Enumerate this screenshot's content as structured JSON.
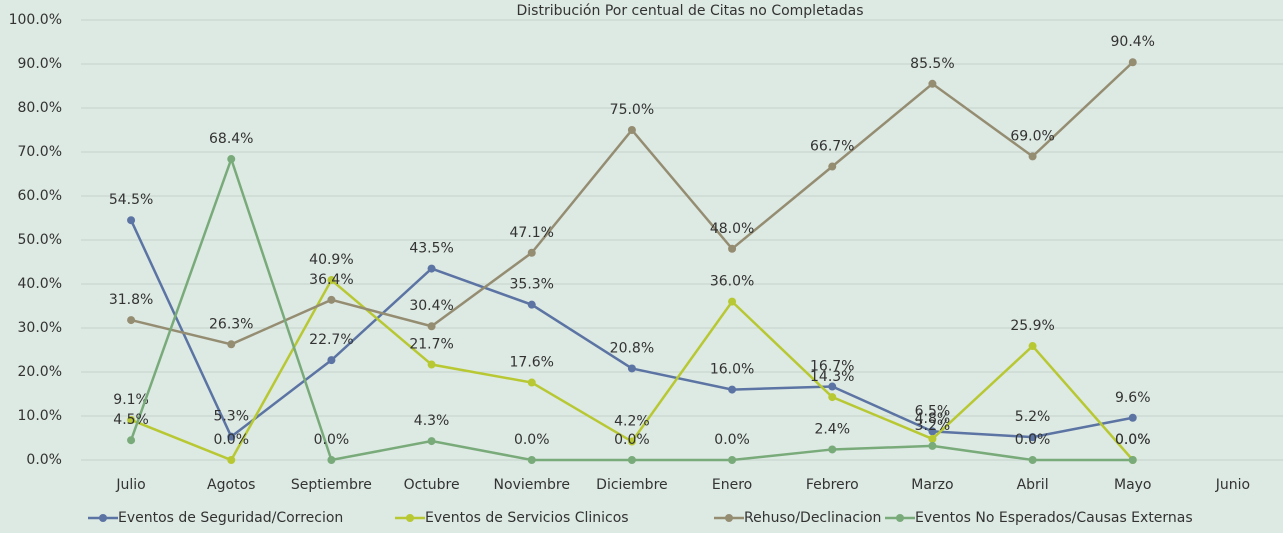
{
  "chart_data": {
    "type": "line",
    "title": "Distribución Por centual de Citas no Completadas",
    "categories": [
      "Julio",
      "Agotos",
      "Septiembre",
      "Octubre",
      "Noviembre",
      "Diciembre",
      "Enero",
      "Febrero",
      "Marzo",
      "Abril",
      "Mayo",
      "Junio"
    ],
    "series": [
      {
        "name": "Eventos de Seguridad/Correcion",
        "color": "#5b74a3",
        "values": [
          54.5,
          5.3,
          22.7,
          43.5,
          35.3,
          20.8,
          16.0,
          16.7,
          6.5,
          5.2,
          9.6,
          null
        ],
        "value_labels": [
          "54.5%",
          "5.3%",
          "22.7%",
          "43.5%",
          "35.3%",
          "20.8%",
          "16.0%",
          "16.7%",
          "6.5%",
          "5.2%",
          "9.6%",
          null
        ]
      },
      {
        "name": "Eventos de Servicios Clinicos",
        "color": "#b8c832",
        "values": [
          9.1,
          0.0,
          40.9,
          21.7,
          17.6,
          4.2,
          36.0,
          14.3,
          4.8,
          25.9,
          0.0,
          null
        ],
        "value_labels": [
          "9.1%",
          "0.0%",
          "40.9%",
          "21.7%",
          "17.6%",
          "4.2%",
          "36.0%",
          "14.3%",
          "4.8%",
          "25.9%",
          "0.0%",
          null
        ]
      },
      {
        "name": "Rehuso/Declinacion",
        "color": "#958d72",
        "values": [
          31.8,
          26.3,
          36.4,
          30.4,
          47.1,
          75.0,
          48.0,
          66.7,
          85.5,
          69.0,
          90.4,
          null
        ],
        "value_labels": [
          "31.8%",
          "26.3%",
          "36.4%",
          "30.4%",
          "47.1%",
          "75.0%",
          "48.0%",
          "66.7%",
          "85.5%",
          "69.0%",
          "90.4%",
          null
        ]
      },
      {
        "name": "Eventos No Esperados/Causas Externas",
        "color": "#79ab7a",
        "values": [
          4.5,
          68.4,
          0.0,
          4.3,
          0.0,
          0.0,
          0.0,
          2.4,
          3.2,
          0.0,
          0.0,
          null
        ],
        "value_labels": [
          "4.5%",
          "68.4%",
          "0.0%",
          "4.3%",
          "0.0%",
          "0.0%",
          "0.0%",
          "2.4%",
          "3.2%",
          "0.0%",
          "0.0%",
          null
        ]
      }
    ],
    "ylim": [
      0,
      100
    ],
    "yticks": [
      {
        "value": 0,
        "label": "0.0%"
      },
      {
        "value": 10,
        "label": "10.0%"
      },
      {
        "value": 20,
        "label": "20.0%"
      },
      {
        "value": 30,
        "label": "30.0%"
      },
      {
        "value": 40,
        "label": "40.0%"
      },
      {
        "value": 50,
        "label": "50.0%"
      },
      {
        "value": 60,
        "label": "60.0%"
      },
      {
        "value": 70,
        "label": "70.0%"
      },
      {
        "value": 80,
        "label": "80.0%"
      },
      {
        "value": 90,
        "label": "90.0%"
      },
      {
        "value": 100,
        "label": "100.0%"
      }
    ],
    "grid": true,
    "legend": "bottom"
  }
}
